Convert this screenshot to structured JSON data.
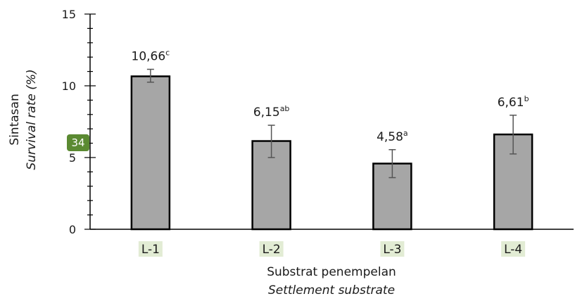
{
  "page_badge": "34",
  "chart_data": {
    "type": "bar",
    "categories": [
      "L-1",
      "L-2",
      "L-3",
      "L-4"
    ],
    "values": [
      10.66,
      6.15,
      4.58,
      6.61
    ],
    "value_labels": [
      "10,66",
      "6,15",
      "4,58",
      "6,61"
    ],
    "significance_letters": [
      "c",
      "ab",
      "a",
      "b"
    ],
    "error_low": [
      10.25,
      5.0,
      3.6,
      5.25
    ],
    "error_high": [
      11.15,
      7.25,
      5.55,
      7.95
    ],
    "ylim": [
      0,
      15
    ],
    "yticks": [
      0,
      5,
      10,
      15
    ],
    "ylabel_line1": "Sintasan",
    "ylabel_line2": "Survival rate (%)",
    "xlabel_line1": "Substrat penempelan",
    "xlabel_line2": "Settlement substrate",
    "bar_color": "#a6a6a6",
    "bar_edge_color": "#000000",
    "category_highlight": "#e2ecd4",
    "grid": false
  }
}
